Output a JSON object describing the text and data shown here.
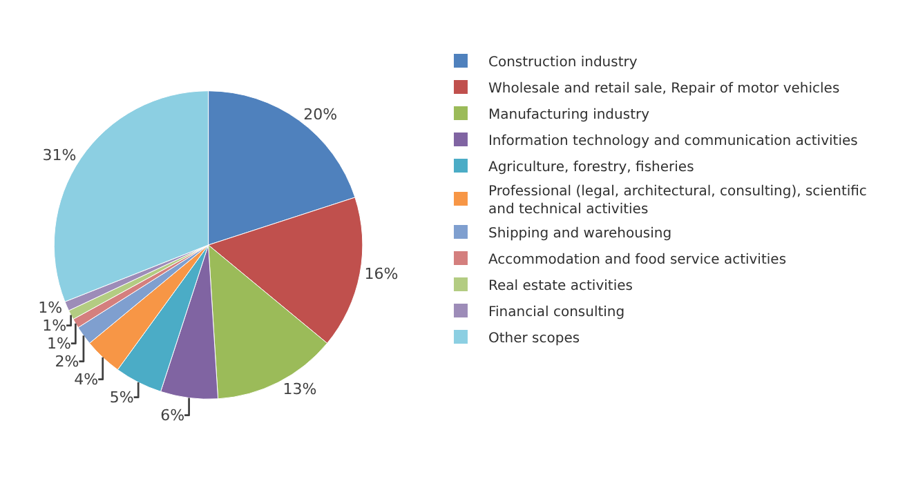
{
  "chart_data": {
    "type": "pie",
    "categories": [
      "Construction industry",
      "Wholesale and retail sale, Repair of motor vehicles",
      "Manufacturing industry",
      "Information technology and communication activities",
      "Agriculture, forestry, fisheries",
      "Professional (legal, architectural, consulting), scientific and technical activities",
      "Shipping and warehousing",
      "Accommodation and food service activities",
      "Real estate activities",
      "Financial consulting",
      "Other scopes"
    ],
    "values": [
      20,
      16,
      13,
      6,
      5,
      4,
      2,
      1,
      1,
      1,
      31
    ],
    "value_labels": [
      "20%",
      "16%",
      "13%",
      "6%",
      "5%",
      "4%",
      "2%",
      "1%",
      "1%",
      "1%",
      "31%"
    ],
    "colors": [
      "#4f81bd",
      "#c0504d",
      "#9bbb59",
      "#8064a2",
      "#4bacc6",
      "#f79646",
      "#7f9fcf",
      "#d47f7e",
      "#b3cc82",
      "#9d8cb8",
      "#8ccfe2"
    ],
    "legend": "right"
  }
}
